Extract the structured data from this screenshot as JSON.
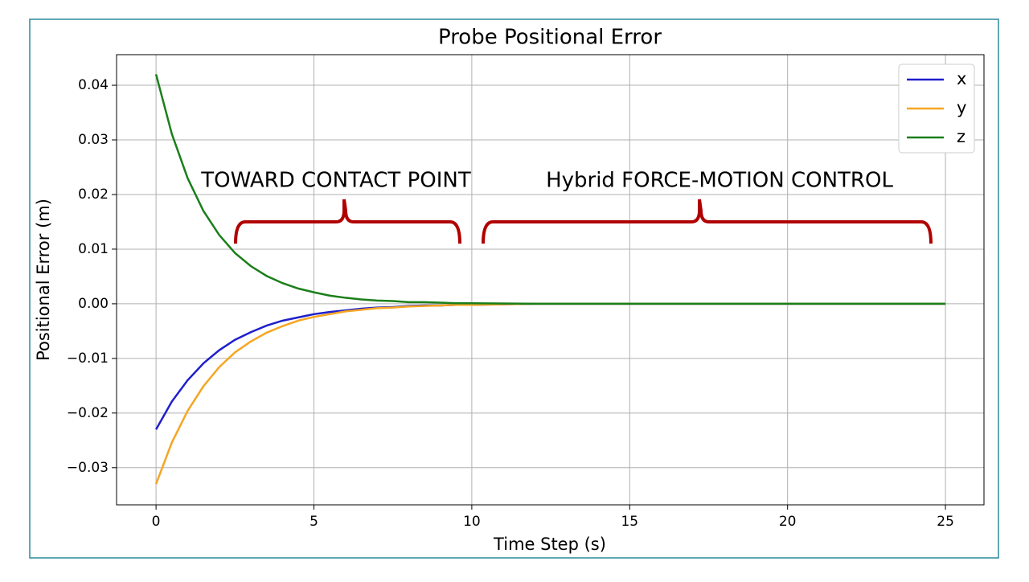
{
  "chart_data": {
    "type": "line",
    "title": "Probe Positional Error",
    "x_label": "Time Step (s)",
    "y_label": "Positional Error (m)",
    "x": [
      0,
      0.5,
      1,
      1.5,
      2,
      2.5,
      3,
      3.5,
      4,
      4.5,
      5,
      5.5,
      6,
      6.5,
      7,
      7.5,
      8,
      8.5,
      9,
      9.5,
      10,
      12,
      15,
      20,
      25
    ],
    "series": [
      {
        "name": "x",
        "color": "#1f1fcc",
        "values": [
          -0.023,
          -0.0179,
          -0.014,
          -0.0109,
          -0.0085,
          -0.0066,
          -0.0052,
          -0.004,
          -0.0031,
          -0.0025,
          -0.0019,
          -0.0015,
          -0.0012,
          -0.0009,
          -0.0007,
          -0.0006,
          -0.0004,
          -0.0003,
          -0.0003,
          -0.0002,
          -0.0002,
          0,
          0,
          0,
          0
        ]
      },
      {
        "name": "y",
        "color": "#f5a623",
        "values": [
          -0.033,
          -0.0254,
          -0.0196,
          -0.0151,
          -0.0116,
          -0.0089,
          -0.0069,
          -0.0053,
          -0.0041,
          -0.0031,
          -0.0024,
          -0.0019,
          -0.0014,
          -0.0011,
          -0.0008,
          -0.0007,
          -0.0005,
          -0.0004,
          -0.0003,
          -0.0002,
          -0.0002,
          0,
          0,
          0,
          0
        ]
      },
      {
        "name": "z",
        "color": "#1a7f1a",
        "values": [
          0.042,
          0.0311,
          0.023,
          0.017,
          0.0126,
          0.0093,
          0.0069,
          0.0051,
          0.0038,
          0.0028,
          0.0021,
          0.0015,
          0.0011,
          0.0008,
          0.0006,
          0.0005,
          0.0003,
          0.0003,
          0.0002,
          0.0001,
          0.0001,
          0,
          0,
          0,
          0
        ]
      }
    ],
    "xlim": [
      -1.25,
      26.22
    ],
    "ylim": [
      -0.0368,
      0.0456
    ],
    "xticks": [
      0,
      5,
      10,
      15,
      20,
      25
    ],
    "yticks": [
      {
        "value": -0.03,
        "label": "−0.03"
      },
      {
        "value": -0.02,
        "label": "−0.02"
      },
      {
        "value": -0.01,
        "label": "−0.01"
      },
      {
        "value": 0,
        "label": "0.00"
      },
      {
        "value": 0.01,
        "label": "0.01"
      },
      {
        "value": 0.02,
        "label": "0.02"
      },
      {
        "value": 0.03,
        "label": "0.03"
      },
      {
        "value": 0.04,
        "label": "0.04"
      }
    ],
    "grid": true,
    "legend": "upper right",
    "annotations": [
      {
        "text": "TOWARD CONTACT POINT",
        "color": "#9b30e0"
      },
      {
        "text": "Hybrid FORCE-MOTION CONTROL",
        "color": "#9b30e0"
      }
    ]
  }
}
